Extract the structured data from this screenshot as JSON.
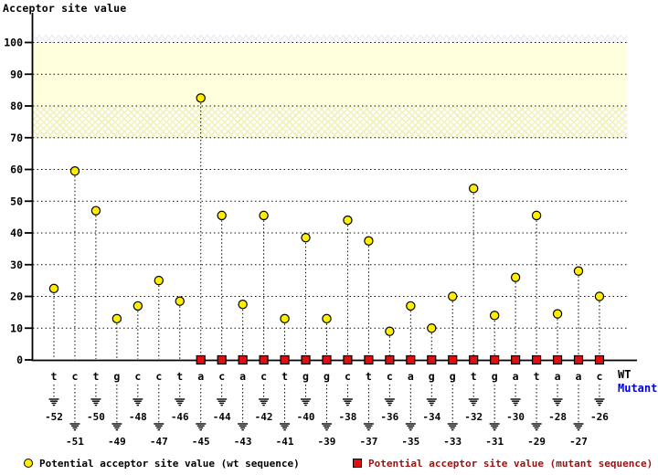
{
  "title": "Acceptor site value",
  "wt_row_label": "WT",
  "mutant_row_label": "Mutant",
  "legend": {
    "wt": "Potential acceptor site value (wt sequence)",
    "mutant": "Potential acceptor site value (mutant sequence)"
  },
  "colors": {
    "wt_marker": "#ffee00",
    "mutant_marker": "#dd1111",
    "mutant_legend_text": "#991111",
    "mutant_row_label": "#0000dd",
    "band_solid": "#ffffdd",
    "axis": "#000000"
  },
  "icons": {
    "mutant_sequence_mark": "ground-deletion-mark"
  },
  "chart_data": {
    "type": "scatter",
    "subtype": "lollipop",
    "title": "Acceptor site value",
    "xlabel": "",
    "ylabel": "Acceptor site value",
    "ylim": [
      0,
      107
    ],
    "yticks": [
      0,
      10,
      20,
      30,
      40,
      50,
      60,
      70,
      80,
      90,
      100
    ],
    "grid": "dotted-horizontal",
    "legend_position": "bottom",
    "highlight_bands": [
      {
        "from": 80,
        "to": 100,
        "style": "solid"
      },
      {
        "from": 70,
        "to": 80,
        "style": "hatched"
      }
    ],
    "series_names": [
      "Potential acceptor site value (wt sequence)",
      "Potential acceptor site value (mutant sequence)"
    ],
    "points": [
      {
        "pos": -52,
        "base": "t",
        "wt": 22.5,
        "mutant": null
      },
      {
        "pos": -51,
        "base": "c",
        "wt": 59.5,
        "mutant": null
      },
      {
        "pos": -50,
        "base": "t",
        "wt": 47,
        "mutant": null
      },
      {
        "pos": -49,
        "base": "g",
        "wt": 13,
        "mutant": null
      },
      {
        "pos": -48,
        "base": "c",
        "wt": 17,
        "mutant": null
      },
      {
        "pos": -47,
        "base": "c",
        "wt": 25,
        "mutant": null
      },
      {
        "pos": -46,
        "base": "t",
        "wt": 18.5,
        "mutant": null
      },
      {
        "pos": -45,
        "base": "a",
        "wt": 82.5,
        "mutant": 0
      },
      {
        "pos": -44,
        "base": "c",
        "wt": 45.5,
        "mutant": 0
      },
      {
        "pos": -43,
        "base": "a",
        "wt": 17.5,
        "mutant": 0
      },
      {
        "pos": -42,
        "base": "c",
        "wt": 45.5,
        "mutant": 0
      },
      {
        "pos": -41,
        "base": "t",
        "wt": 13,
        "mutant": 0
      },
      {
        "pos": -40,
        "base": "g",
        "wt": 38.5,
        "mutant": 0
      },
      {
        "pos": -39,
        "base": "g",
        "wt": 13,
        "mutant": 0
      },
      {
        "pos": -38,
        "base": "c",
        "wt": 44,
        "mutant": 0
      },
      {
        "pos": -37,
        "base": "t",
        "wt": 37.5,
        "mutant": 0
      },
      {
        "pos": -36,
        "base": "c",
        "wt": 9,
        "mutant": 0
      },
      {
        "pos": -35,
        "base": "a",
        "wt": 17,
        "mutant": 0
      },
      {
        "pos": -34,
        "base": "g",
        "wt": 10,
        "mutant": 0
      },
      {
        "pos": -33,
        "base": "g",
        "wt": 20,
        "mutant": 0
      },
      {
        "pos": -32,
        "base": "t",
        "wt": 54,
        "mutant": 0
      },
      {
        "pos": -31,
        "base": "g",
        "wt": 14,
        "mutant": 0
      },
      {
        "pos": -30,
        "base": "a",
        "wt": 26,
        "mutant": 0
      },
      {
        "pos": -29,
        "base": "t",
        "wt": 45.5,
        "mutant": 0
      },
      {
        "pos": -28,
        "base": "a",
        "wt": 14.5,
        "mutant": 0
      },
      {
        "pos": -27,
        "base": "a",
        "wt": 28,
        "mutant": 0
      },
      {
        "pos": -26,
        "base": "c",
        "wt": 20,
        "mutant": 0
      }
    ]
  }
}
